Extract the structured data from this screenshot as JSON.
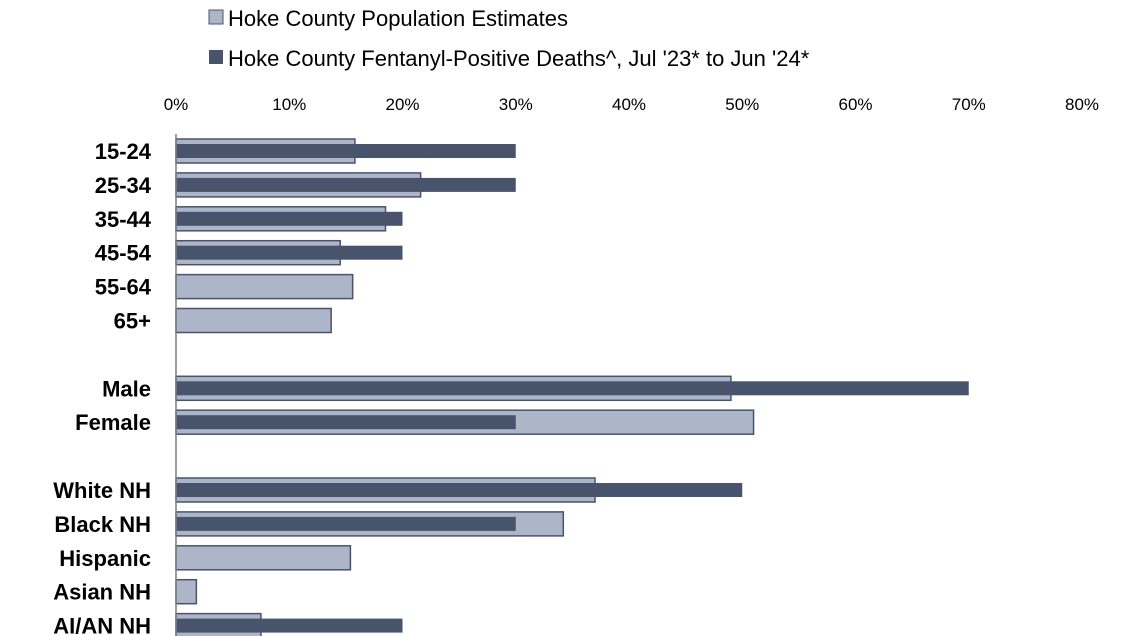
{
  "chart_data": {
    "type": "bar",
    "orientation": "horizontal",
    "xlim": [
      0,
      80
    ],
    "x_ticks": [
      "0%",
      "10%",
      "20%",
      "30%",
      "40%",
      "50%",
      "60%",
      "70%",
      "80%"
    ],
    "legend_position": "top",
    "grid": false,
    "categories": [
      "15-24",
      "25-34",
      "35-44",
      "45-54",
      "55-64",
      "65+",
      "",
      "Male",
      "Female",
      "",
      "White NH",
      "Black NH",
      "Hispanic",
      "Asian NH",
      "AI/AN NH"
    ],
    "series": [
      {
        "name": "Hoke County Population Estimates",
        "color": "#adb5c8",
        "values": [
          15.8,
          21.6,
          18.5,
          14.5,
          15.6,
          13.7,
          null,
          49.0,
          51.0,
          null,
          37.0,
          34.2,
          15.4,
          1.8,
          7.5
        ]
      },
      {
        "name": "Hoke County Fentanyl-Positive Deaths^, Jul '23* to Jun '24*",
        "color": "#47546c",
        "values": [
          30,
          30,
          20,
          20,
          null,
          null,
          null,
          70,
          30,
          null,
          50,
          30,
          null,
          null,
          20
        ]
      }
    ]
  }
}
